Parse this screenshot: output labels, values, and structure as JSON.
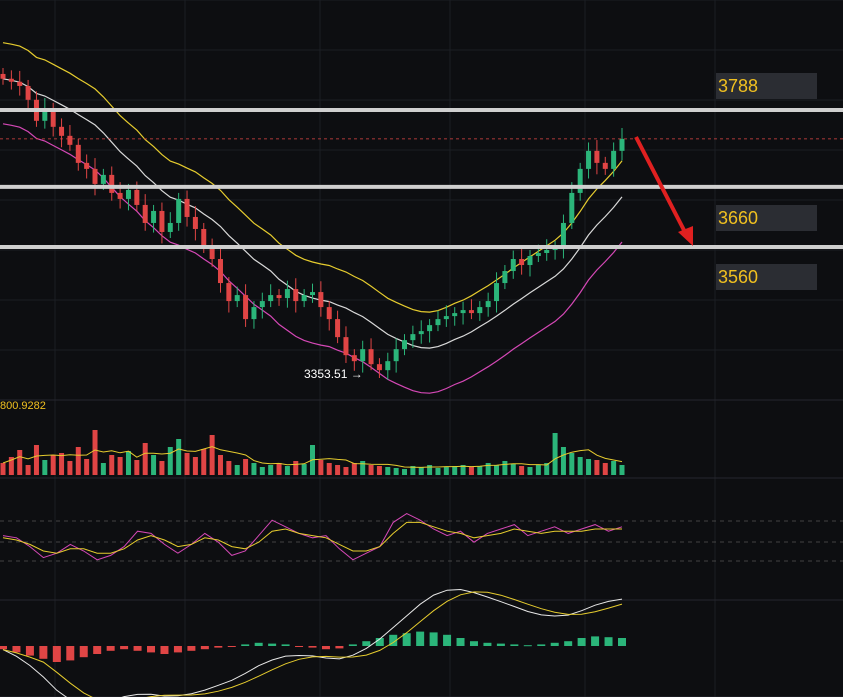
{
  "chart_data": [
    {
      "type": "candlestick",
      "panel": "price",
      "levels": [
        {
          "label": "3788",
          "value": 3788
        },
        {
          "label": "3660",
          "value": 3660
        },
        {
          "label": "3560",
          "value": 3560
        }
      ],
      "low_annotation": "3353.51 →",
      "low_value": 3353.51,
      "trend_arrow": "down",
      "series": [
        {
          "name": "close",
          "values": [
            3840,
            3835,
            3828,
            3805,
            3770,
            3790,
            3760,
            3745,
            3730,
            3700,
            3690,
            3665,
            3680,
            3650,
            3640,
            3655,
            3630,
            3600,
            3620,
            3585,
            3600,
            3640,
            3610,
            3590,
            3560,
            3540,
            3500,
            3470,
            3480,
            3440,
            3460,
            3470,
            3480,
            3475,
            3490,
            3470,
            3480,
            3485,
            3460,
            3440,
            3410,
            3380,
            3370,
            3390,
            3365,
            3355,
            3370,
            3390,
            3405,
            3415,
            3420,
            3430,
            3440,
            3445,
            3450,
            3455,
            3450,
            3460,
            3470,
            3500,
            3520,
            3540,
            3530,
            3545,
            3550,
            3555,
            3560,
            3600,
            3650,
            3690,
            3720,
            3700,
            3690,
            3720,
            3740
          ]
        }
      ],
      "grid": true
    },
    {
      "type": "bar",
      "panel": "volume",
      "readout": "800.9282",
      "values": [
        12,
        18,
        25,
        10,
        30,
        15,
        20,
        22,
        14,
        28,
        16,
        45,
        12,
        20,
        18,
        24,
        15,
        32,
        20,
        14,
        28,
        36,
        22,
        18,
        26,
        40,
        20,
        14,
        10,
        16,
        12,
        8,
        10,
        12,
        9,
        14,
        11,
        30,
        15,
        12,
        10,
        8,
        12,
        14,
        10,
        9,
        8,
        7,
        6,
        9,
        8,
        10,
        7,
        8,
        9,
        10,
        8,
        9,
        12,
        10,
        14,
        11,
        9,
        8,
        10,
        12,
        42,
        28,
        22,
        18,
        16,
        15,
        12,
        14,
        10
      ]
    },
    {
      "type": "line",
      "panel": "oscillator",
      "series": [
        {
          "name": "",
          "values": [
            0.2,
            0.1,
            -0.3,
            -0.8,
            -0.6,
            -0.2,
            -0.5,
            -0.9,
            -0.7,
            -0.3,
            0.4,
            0.3,
            -0.2,
            -0.6,
            -0.2,
            0.3,
            -0.1,
            -0.7,
            -0.5,
            0.2,
            0.9,
            0.6,
            0.3,
            0.1,
            0.2,
            -0.4,
            -0.9,
            -0.6,
            -0.3,
            0.8,
            1.2,
            0.9,
            0.5,
            0.2,
            0.4,
            -0.1,
            0.3,
            0.5,
            0.7,
            0.2,
            0.4,
            0.6,
            0.3,
            0.5,
            0.7,
            0.4,
            0.6
          ]
        },
        {
          "name": "",
          "values": [
            0.1,
            0.0,
            -0.2,
            -0.5,
            -0.6,
            -0.4,
            -0.4,
            -0.6,
            -0.6,
            -0.4,
            0.0,
            0.2,
            0.0,
            -0.3,
            -0.2,
            0.1,
            0.0,
            -0.3,
            -0.4,
            -0.1,
            0.4,
            0.5,
            0.3,
            0.2,
            0.1,
            -0.2,
            -0.5,
            -0.5,
            -0.3,
            0.3,
            0.8,
            0.8,
            0.6,
            0.4,
            0.3,
            0.1,
            0.2,
            0.3,
            0.5,
            0.4,
            0.3,
            0.4,
            0.4,
            0.4,
            0.5,
            0.5,
            0.5
          ]
        }
      ]
    },
    {
      "type": "histogram",
      "panel": "macd",
      "values": [
        -0.2,
        -0.4,
        -0.6,
        -0.8,
        -1.0,
        -0.9,
        -0.7,
        -0.5,
        -0.3,
        -0.2,
        -0.3,
        -0.4,
        -0.5,
        -0.4,
        -0.3,
        -0.2,
        -0.1,
        -0.05,
        0.1,
        0.2,
        0.15,
        0.1,
        -0.05,
        -0.1,
        -0.2,
        -0.15,
        0.1,
        0.3,
        0.5,
        0.7,
        0.8,
        0.9,
        0.85,
        0.7,
        0.5,
        0.3,
        0.2,
        0.15,
        0.1,
        0.05,
        0.1,
        0.2,
        0.3,
        0.5,
        0.6,
        0.55,
        0.5
      ]
    }
  ],
  "colors": {
    "background": "#0d0e11",
    "up": "#2bb57a",
    "down": "#e04545",
    "band_upper": "#e6cc2e",
    "band_mid": "#d9d9d9",
    "band_lower": "#d548b6",
    "level_line": "#cfcfcf",
    "arrow": "#e02020",
    "label_text": "#f0c020",
    "label_bg": "#2b2d33"
  }
}
